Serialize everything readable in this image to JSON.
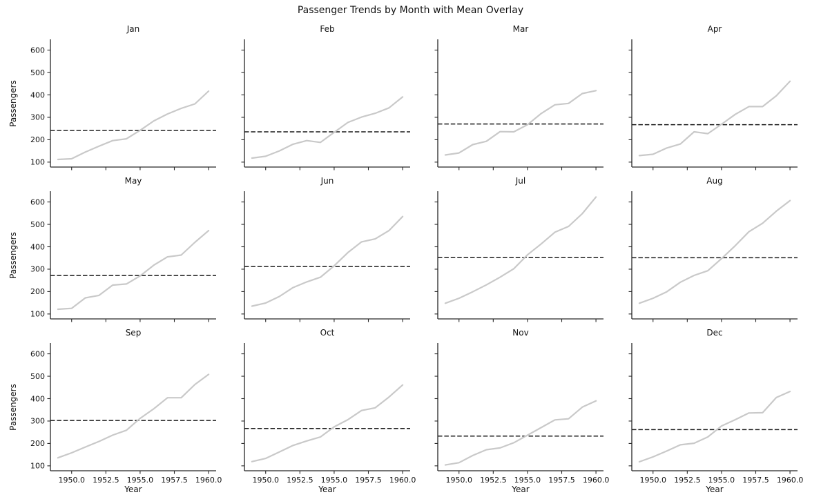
{
  "figure": {
    "title": "Passenger Trends by Month with Mean Overlay"
  },
  "chart_data": {
    "type": "line",
    "title": "Passenger Trends by Month with Mean Overlay",
    "grid_layout": "3 rows x 4 cols of subplots, shared x and y axes, labels on outer edges only",
    "xlabel": "Year",
    "ylabel": "Passengers",
    "x": [
      1949,
      1950,
      1951,
      1952,
      1953,
      1954,
      1955,
      1956,
      1957,
      1958,
      1959,
      1960
    ],
    "xtick_labels": [
      "1950.0",
      "1952.5",
      "1955.0",
      "1957.5",
      "1960.0"
    ],
    "xtick_values": [
      1950,
      1952.5,
      1955,
      1957.5,
      1960
    ],
    "ytick_labels": [
      "100",
      "200",
      "300",
      "400",
      "500",
      "600"
    ],
    "ytick_values": [
      100,
      200,
      300,
      400,
      500,
      600
    ],
    "xlim": [
      1948.45,
      1960.55
    ],
    "ylim": [
      78,
      648
    ],
    "grid": false,
    "legend": false,
    "series_color": "#c9c9c9",
    "mean_line_color": "#1a1a1a",
    "mean_line_style": "dashed",
    "subplots": [
      {
        "title": "Jan",
        "values": [
          112,
          115,
          145,
          171,
          196,
          204,
          242,
          284,
          315,
          340,
          360,
          417
        ],
        "mean": 241.75
      },
      {
        "title": "Feb",
        "values": [
          118,
          126,
          150,
          180,
          196,
          188,
          233,
          277,
          301,
          318,
          342,
          391
        ],
        "mean": 235.0
      },
      {
        "title": "Mar",
        "values": [
          132,
          141,
          178,
          193,
          236,
          235,
          267,
          317,
          356,
          362,
          406,
          419
        ],
        "mean": 270.17
      },
      {
        "title": "Apr",
        "values": [
          129,
          135,
          163,
          181,
          235,
          227,
          269,
          313,
          348,
          348,
          396,
          461
        ],
        "mean": 267.08
      },
      {
        "title": "May",
        "values": [
          121,
          125,
          172,
          183,
          229,
          234,
          270,
          318,
          355,
          363,
          420,
          472
        ],
        "mean": 271.83
      },
      {
        "title": "Jun",
        "values": [
          135,
          149,
          178,
          218,
          243,
          264,
          315,
          374,
          422,
          435,
          472,
          535
        ],
        "mean": 311.67
      },
      {
        "title": "Jul",
        "values": [
          148,
          170,
          199,
          230,
          264,
          302,
          364,
          413,
          465,
          491,
          548,
          622
        ],
        "mean": 351.33
      },
      {
        "title": "Aug",
        "values": [
          148,
          170,
          199,
          242,
          272,
          293,
          347,
          405,
          467,
          505,
          559,
          606
        ],
        "mean": 351.08
      },
      {
        "title": "Sep",
        "values": [
          136,
          158,
          184,
          209,
          237,
          259,
          312,
          355,
          404,
          404,
          463,
          508
        ],
        "mean": 302.42
      },
      {
        "title": "Oct",
        "values": [
          119,
          133,
          162,
          191,
          211,
          229,
          274,
          306,
          347,
          359,
          407,
          461
        ],
        "mean": 266.58
      },
      {
        "title": "Nov",
        "values": [
          104,
          114,
          146,
          172,
          180,
          203,
          237,
          271,
          305,
          310,
          362,
          390
        ],
        "mean": 232.83
      },
      {
        "title": "Dec",
        "values": [
          118,
          140,
          166,
          194,
          201,
          229,
          278,
          306,
          336,
          337,
          405,
          432
        ],
        "mean": 261.83
      }
    ]
  }
}
